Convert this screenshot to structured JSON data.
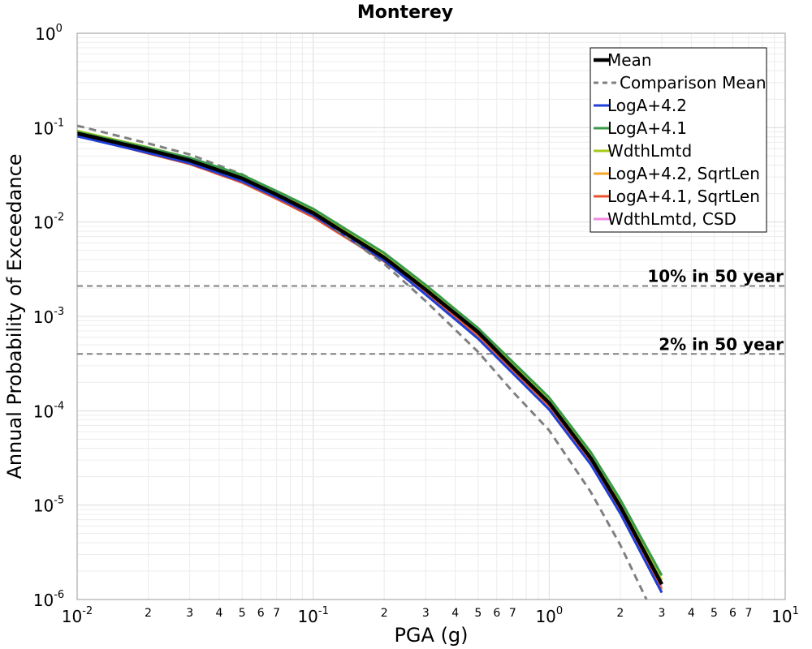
{
  "chart_data": {
    "type": "line",
    "title": "Monterey",
    "xlabel": "PGA (g)",
    "ylabel": "Annual Probability of Exceedance",
    "xscale": "log",
    "yscale": "log",
    "xlim": [
      0.01,
      10
    ],
    "ylim": [
      1e-06,
      1
    ],
    "grid": true,
    "legend_placement": "top-right",
    "x_tick_labels": [
      {
        "value": 0.01,
        "base": "10",
        "exp": "-2"
      },
      {
        "value": 0.1,
        "base": "10",
        "exp": "-1"
      },
      {
        "value": 1,
        "base": "10",
        "exp": "0"
      },
      {
        "value": 10,
        "base": "10",
        "exp": "1"
      }
    ],
    "x_minor_labels": [
      "2",
      "3",
      "4",
      "5",
      "6",
      "7"
    ],
    "y_tick_labels": [
      {
        "value": 1,
        "base": "10",
        "exp": "0"
      },
      {
        "value": 0.1,
        "base": "10",
        "exp": "-1"
      },
      {
        "value": 0.01,
        "base": "10",
        "exp": "-2"
      },
      {
        "value": 0.001,
        "base": "10",
        "exp": "-3"
      },
      {
        "value": 0.0001,
        "base": "10",
        "exp": "-4"
      },
      {
        "value": 1e-05,
        "base": "10",
        "exp": "-5"
      },
      {
        "value": 1e-06,
        "base": "10",
        "exp": "-6"
      }
    ],
    "reference_lines": [
      {
        "label": "10% in 50 year",
        "y": 0.0021,
        "color": "#808080"
      },
      {
        "label": "2% in 50 year",
        "y": 0.0004,
        "color": "#808080"
      }
    ],
    "x": [
      0.01,
      0.02,
      0.03,
      0.05,
      0.07,
      0.1,
      0.2,
      0.3,
      0.5,
      0.7,
      1.0,
      1.5,
      2.0,
      3.0
    ],
    "series": [
      {
        "name": "LogA+4.2, SqrtLen",
        "color": "#f5a623",
        "width": 2.5,
        "dash": "",
        "values": [
          0.082,
          0.054,
          0.042,
          0.027,
          0.018,
          0.0113,
          0.0038,
          0.00175,
          0.00061,
          0.00026,
          0.000108,
          2.8e-05,
          8.5e-06,
          1.25e-06
        ]
      },
      {
        "name": "LogA+4.1, SqrtLen",
        "color": "#e8532e",
        "width": 2.5,
        "dash": "",
        "values": [
          0.083,
          0.053,
          0.041,
          0.026,
          0.0175,
          0.0112,
          0.0038,
          0.00178,
          0.00063,
          0.00027,
          0.000113,
          2.9e-05,
          9e-06,
          1.3e-06
        ]
      },
      {
        "name": "WdthLmtd, CSD",
        "color": "#f08ae0",
        "width": 2.5,
        "dash": "",
        "values": [
          0.088,
          0.059,
          0.046,
          0.0295,
          0.0198,
          0.0127,
          0.0042,
          0.00193,
          0.00067,
          0.00029,
          0.000121,
          3.1e-05,
          9.5e-06,
          1.4e-06
        ]
      },
      {
        "name": "WdthLmtd",
        "color": "#a4c919",
        "width": 2.5,
        "dash": "",
        "values": [
          0.093,
          0.062,
          0.048,
          0.031,
          0.0207,
          0.0132,
          0.0044,
          0.00205,
          0.00072,
          0.00031,
          0.00013,
          3.4e-05,
          1.05e-05,
          1.6e-06
        ]
      },
      {
        "name": "LogA+4.2",
        "color": "#1f3fd6",
        "width": 3,
        "dash": "",
        "values": [
          0.081,
          0.054,
          0.042,
          0.027,
          0.0183,
          0.0118,
          0.0039,
          0.0017,
          0.00058,
          0.00025,
          0.000103,
          2.7e-05,
          8.2e-06,
          1.18e-06
        ]
      },
      {
        "name": "Comparison Mean",
        "color": "#808080",
        "width": 3,
        "dash": "9,6",
        "values": [
          0.105,
          0.068,
          0.052,
          0.032,
          0.0205,
          0.0125,
          0.0036,
          0.00145,
          0.00042,
          0.00016,
          6.2e-05,
          1.38e-05,
          3.8e-06,
          4.6e-07
        ]
      },
      {
        "name": "LogA+4.1",
        "color": "#3a9a4a",
        "width": 3,
        "dash": "",
        "values": [
          0.09,
          0.061,
          0.048,
          0.0315,
          0.0213,
          0.0138,
          0.0047,
          0.00215,
          0.00075,
          0.00033,
          0.000138,
          3.65e-05,
          1.15e-05,
          1.8e-06
        ]
      },
      {
        "name": "Mean",
        "color": "#000000",
        "width": 4.5,
        "dash": "",
        "values": [
          0.087,
          0.058,
          0.045,
          0.029,
          0.0195,
          0.0125,
          0.0042,
          0.00192,
          0.00068,
          0.00029,
          0.000121,
          3.15e-05,
          9.7e-06,
          1.45e-06
        ]
      }
    ],
    "legend": [
      {
        "name": "Mean",
        "color": "#000000",
        "width": 4.5,
        "dash": ""
      },
      {
        "name": "Comparison Mean",
        "color": "#808080",
        "width": 3,
        "dash": "9,6"
      },
      {
        "name": "LogA+4.2",
        "color": "#1f3fd6",
        "width": 3,
        "dash": ""
      },
      {
        "name": "LogA+4.1",
        "color": "#3a9a4a",
        "width": 3,
        "dash": ""
      },
      {
        "name": "WdthLmtd",
        "color": "#a4c919",
        "width": 3,
        "dash": ""
      },
      {
        "name": "LogA+4.2, SqrtLen",
        "color": "#f5a623",
        "width": 3,
        "dash": ""
      },
      {
        "name": "LogA+4.1, SqrtLen",
        "color": "#e8532e",
        "width": 3,
        "dash": ""
      },
      {
        "name": "WdthLmtd, CSD",
        "color": "#f08ae0",
        "width": 3,
        "dash": ""
      }
    ]
  }
}
